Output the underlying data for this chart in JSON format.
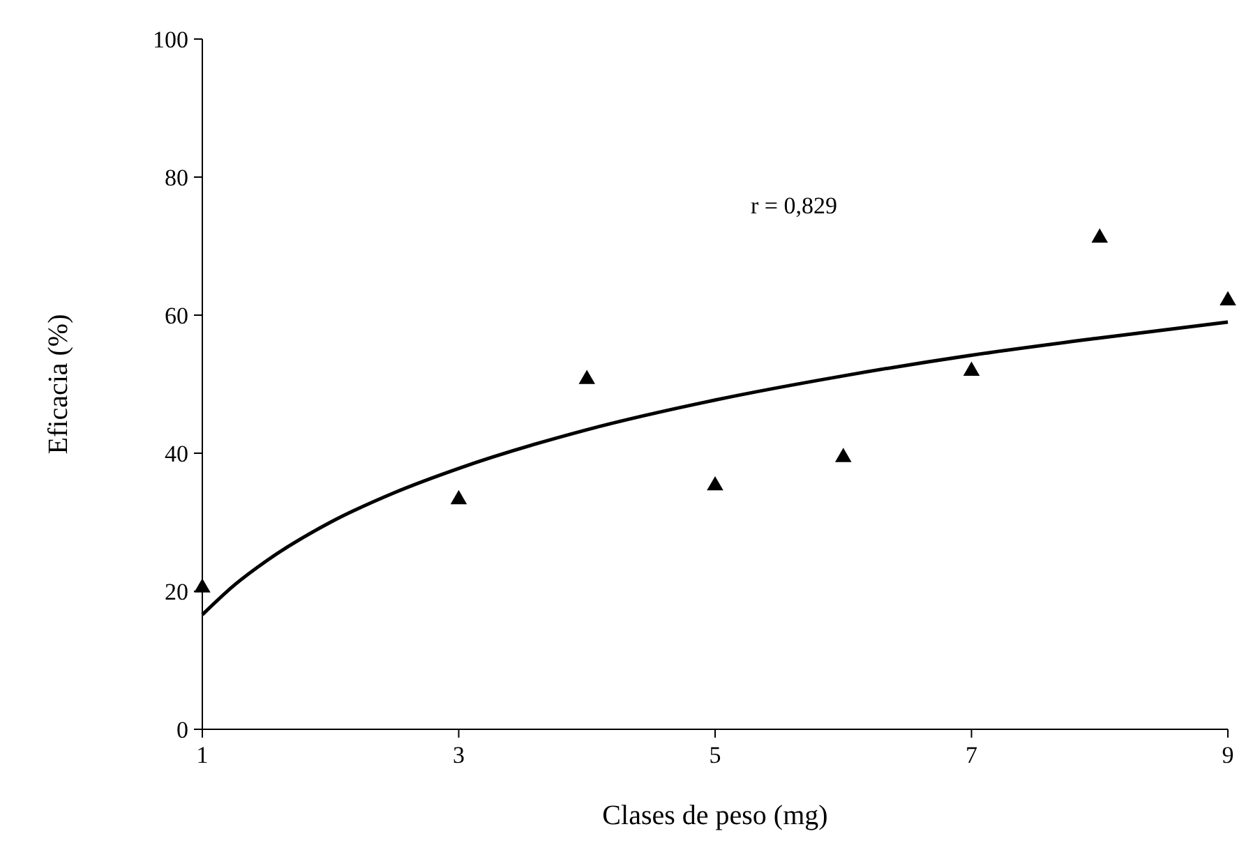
{
  "chart_data": {
    "type": "scatter",
    "xlabel": "Clases de peso (mg)",
    "ylabel": "Eficacia (%)",
    "annotations": [
      "r = 0,829"
    ],
    "x": [
      1,
      3,
      4,
      5,
      6,
      7,
      8,
      9
    ],
    "xlim": [
      1,
      9
    ],
    "xticks": [
      1,
      3,
      5,
      7,
      9
    ],
    "ylim": [
      0,
      100
    ],
    "yticks": [
      0,
      20,
      40,
      60,
      80,
      100
    ],
    "grid": false,
    "series": [
      {
        "color": "#000000",
        "marker": "triangle",
        "values": [
          20.5,
          33.3,
          50.7,
          35.3,
          39.4,
          51.9,
          71.2,
          62.1
        ]
      },
      {
        "type": "line",
        "color": "#000000",
        "marker": "none",
        "line_style": "solid",
        "x": [
          1,
          1.25,
          1.5,
          2,
          2.5,
          3,
          4,
          5,
          6,
          7,
          8,
          9
        ],
        "values": [
          16.6,
          20.9,
          24.4,
          30.0,
          34.3,
          37.8,
          43.4,
          47.7,
          51.2,
          54.2,
          56.7,
          59.0
        ]
      }
    ]
  }
}
